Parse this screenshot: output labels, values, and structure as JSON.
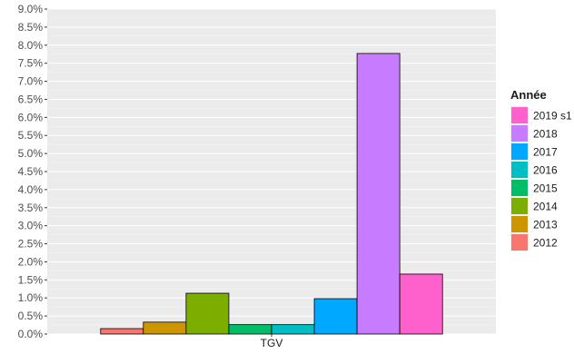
{
  "chart_data": {
    "type": "bar",
    "categories": [
      "TGV"
    ],
    "ylim": [
      0,
      9.0
    ],
    "ytick_step": 0.5,
    "ytick_labels": [
      "0.0%",
      "0.5%",
      "1.0%",
      "1.5%",
      "2.0%",
      "2.5%",
      "3.0%",
      "3.5%",
      "4.0%",
      "4.5%",
      "5.0%",
      "5.5%",
      "6.0%",
      "6.5%",
      "7.0%",
      "7.5%",
      "8.0%",
      "8.5%",
      "9.0%"
    ],
    "grid": true,
    "legend_title": "Année",
    "legend_position": "right",
    "series": [
      {
        "name": "2012",
        "color": "#F8766D",
        "values": [
          0.15
        ]
      },
      {
        "name": "2013",
        "color": "#CD9600",
        "values": [
          0.33
        ]
      },
      {
        "name": "2014",
        "color": "#7CAE00",
        "values": [
          1.13
        ]
      },
      {
        "name": "2015",
        "color": "#00BE67",
        "values": [
          0.26
        ]
      },
      {
        "name": "2016",
        "color": "#00BFC4",
        "values": [
          0.26
        ]
      },
      {
        "name": "2017",
        "color": "#00A9FF",
        "values": [
          0.98
        ]
      },
      {
        "name": "2018",
        "color": "#C77CFF",
        "values": [
          7.77
        ]
      },
      {
        "name": "2019 s1",
        "color": "#FF61CC",
        "values": [
          1.66
        ]
      }
    ]
  }
}
